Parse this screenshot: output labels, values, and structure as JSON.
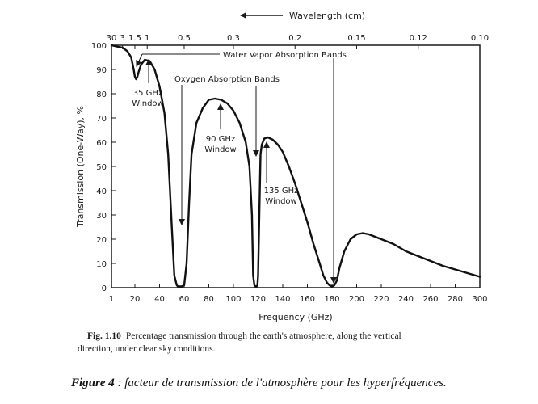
{
  "chart_data": {
    "type": "line",
    "xlabel": "Frequency (GHz)",
    "ylabel": "Transmission (One-Way), %",
    "top_axis_label": "Wavelength (cm)",
    "xlim": [
      1,
      300
    ],
    "ylim": [
      0,
      100
    ],
    "grid": false,
    "x_ticks": [
      1,
      20,
      40,
      60,
      80,
      100,
      120,
      140,
      160,
      180,
      200,
      220,
      240,
      260,
      280,
      300
    ],
    "y_ticks": [
      0,
      10,
      20,
      30,
      40,
      50,
      60,
      70,
      80,
      90,
      100
    ],
    "top_ticks": [
      {
        "label": "30",
        "freq": 1
      },
      {
        "label": "3",
        "freq": 10
      },
      {
        "label": "1.5",
        "freq": 20
      },
      {
        "label": "1",
        "freq": 30
      },
      {
        "label": "0.5",
        "freq": 60
      },
      {
        "label": "0.3",
        "freq": 100
      },
      {
        "label": "0.2",
        "freq": 150
      },
      {
        "label": "0.15",
        "freq": 200
      },
      {
        "label": "0.12",
        "freq": 250
      },
      {
        "label": "0.10",
        "freq": 300
      }
    ],
    "series": [
      {
        "x": [
          1,
          5,
          10,
          14,
          17,
          19,
          20,
          21,
          22,
          23,
          25,
          28,
          32,
          36,
          40,
          44,
          47,
          50,
          52,
          54,
          55,
          57,
          58,
          60,
          62,
          64,
          66,
          70,
          75,
          80,
          85,
          90,
          95,
          100,
          105,
          110,
          113,
          115,
          116,
          117,
          118,
          118.75,
          119.5,
          120,
          121,
          122,
          123,
          125,
          128,
          132,
          136,
          140,
          145,
          150,
          155,
          160,
          165,
          170,
          173,
          176,
          178,
          180,
          182,
          184,
          186,
          190,
          195,
          200,
          205,
          210,
          215,
          220,
          230,
          240,
          250,
          260,
          270,
          280,
          290,
          300
        ],
        "y": [
          100,
          99.5,
          99,
          97.5,
          95,
          90,
          87,
          86,
          87,
          89,
          92,
          94,
          93.5,
          90,
          83,
          72,
          55,
          25,
          5,
          1,
          0.5,
          0.5,
          0.5,
          1,
          10,
          35,
          55,
          68,
          74,
          77.5,
          78,
          77.5,
          76,
          73,
          68,
          60,
          50,
          30,
          5,
          1,
          0.5,
          0.5,
          1,
          5,
          30,
          55,
          59,
          61.5,
          62,
          61,
          59,
          56,
          50,
          43,
          35,
          27,
          18,
          10,
          5,
          2,
          1,
          0.5,
          1,
          3,
          8,
          15,
          20,
          22,
          22.5,
          22,
          21,
          20,
          18,
          15,
          13,
          11,
          9,
          7.5,
          6,
          4.5
        ]
      }
    ],
    "annotations": {
      "water_vapor": "Water Vapor Absorption Bands",
      "oxygen": "Oxygen Absorption Bands",
      "w35_line1": "35 GHz",
      "w35_line2": "Window",
      "w90_line1": "90 GHz",
      "w90_line2": "Window",
      "w135_line1": "135 GHz",
      "w135_line2": "Window"
    }
  },
  "caption": {
    "fig_number": "Fig. 1.10",
    "text_line1": "Percentage transmission through the earth's atmosphere, along the vertical",
    "text_line2": "direction, under clear sky conditions."
  },
  "figure4": {
    "label": "Figure 4",
    "text": " : facteur de transmission de l'atmosphère pour les hyperfréquences."
  }
}
